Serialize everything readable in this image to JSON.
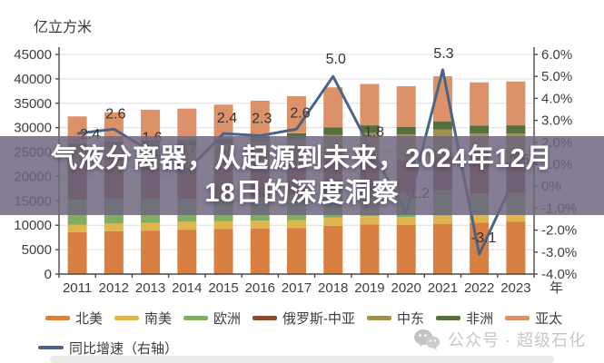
{
  "unit_label": "亿立方米",
  "x_axis_unit": "年",
  "overlay_title": {
    "line1": "气液分离器，从起源到未来，2024年12月",
    "line2": "18日的深度洞察"
  },
  "watermark": {
    "icon": "wechat-icon",
    "text": "公众号 · 超级石化"
  },
  "colors": {
    "overlay_band": "rgba(110,101,126,0.84)",
    "grid": "#dedede",
    "axis": "#4a4a4a",
    "tick_text": "#3e3e3e",
    "data_label_text": "#323232",
    "watermark_gray": "#c6c6c6"
  },
  "chart_data": {
    "type": "bar",
    "subtype": "stacked-bars-with-line-overlay",
    "title": "",
    "categories": [
      "2011",
      "2012",
      "2013",
      "2014",
      "2015",
      "2016",
      "2017",
      "2018",
      "2019",
      "2020",
      "2021",
      "2022",
      "2023"
    ],
    "series": [
      {
        "name": "北美",
        "color": "#D97F42",
        "values": [
          8600,
          8800,
          8900,
          9100,
          9200,
          9300,
          9400,
          9900,
          10200,
          10100,
          10300,
          10500,
          10700
        ]
      },
      {
        "name": "南美",
        "color": "#DFB54E",
        "values": [
          1500,
          1550,
          1600,
          1620,
          1650,
          1630,
          1650,
          1680,
          1680,
          1600,
          1700,
          1650,
          1680
        ]
      },
      {
        "name": "欧洲",
        "color": "#7FAE60",
        "values": [
          5200,
          5100,
          4950,
          4700,
          4750,
          4900,
          5000,
          5050,
          5000,
          4950,
          5150,
          4400,
          4250
        ]
      },
      {
        "name": "俄罗斯-中亚",
        "color": "#8C4A31",
        "values": [
          6400,
          6400,
          6450,
          6400,
          6300,
          6300,
          6400,
          6650,
          6700,
          6600,
          6900,
          6600,
          6400
        ]
      },
      {
        "name": "中东",
        "color": "#A0914F",
        "values": [
          4000,
          4150,
          4300,
          4450,
          4650,
          4850,
          5000,
          5250,
          5350,
          5400,
          5600,
          5650,
          5750
        ]
      },
      {
        "name": "非洲",
        "color": "#55703D",
        "values": [
          1100,
          1150,
          1200,
          1250,
          1300,
          1350,
          1400,
          1500,
          1550,
          1500,
          1650,
          1650,
          1700
        ]
      },
      {
        "name": "亚太",
        "color": "#DD9168",
        "values": [
          5500,
          5990,
          6270,
          6386,
          6870,
          7189,
          7592,
          8234,
          8473,
          8336,
          9226,
          8820,
          8986
        ]
      }
    ],
    "line_series": {
      "name": "同比增速（右轴）",
      "color": "#4A6488",
      "axis": "right",
      "values": [
        2.4,
        2.6,
        1.6,
        0.7,
        2.4,
        2.3,
        2.6,
        5.0,
        1.8,
        -1.2,
        5.3,
        -3.1,
        0.5
      ],
      "labels": [
        "2.4",
        "2.6",
        "1.6",
        "0.7",
        "2.4",
        "2.3",
        "2.6",
        "5.0",
        "1.8",
        "-1.2",
        "5.3",
        "-3.1",
        "0.5"
      ]
    },
    "left_axis": {
      "label": "亿立方米",
      "ticks": [
        45000,
        40000,
        35000,
        30000,
        25000,
        20000,
        15000,
        10000,
        5000,
        0
      ],
      "range": [
        0,
        45000
      ]
    },
    "right_axis": {
      "tick_labels": [
        "6.0%",
        "5.0%",
        "4.0%",
        "3.0%",
        "2.0%",
        "1.0%",
        "0%",
        "-1.0%",
        "-2.0%",
        "-3.0%",
        "-4.0%"
      ],
      "tick_values": [
        6,
        5,
        4,
        3,
        2,
        1,
        0,
        -1,
        -2,
        -3,
        -4
      ],
      "range": [
        -4,
        6
      ]
    },
    "grid": "horizontal",
    "legend_position": "bottom"
  }
}
